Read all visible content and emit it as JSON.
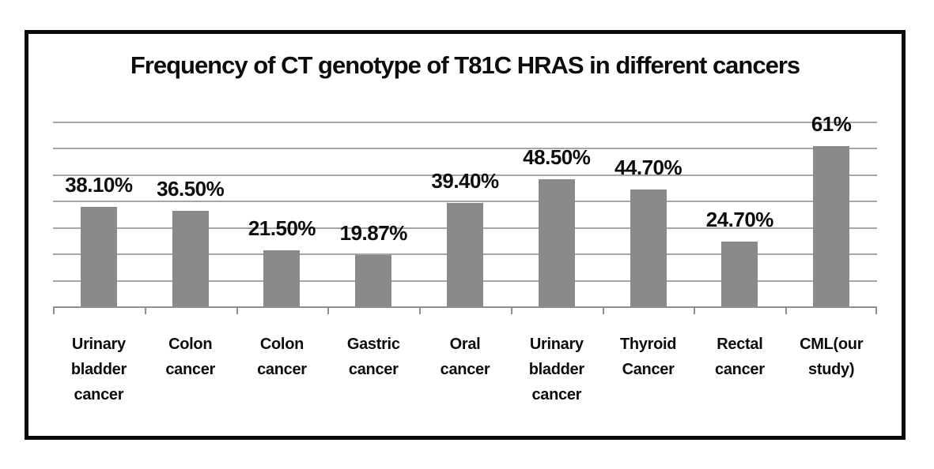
{
  "page": {
    "background": "#ffffff"
  },
  "chart": {
    "colors": {
      "background": "#ffffff",
      "frame_border": "#0a0a0a",
      "bar": "#8a8a8a",
      "gridline": "#a6a6a6",
      "axis": "#8f8f8f",
      "text": "#0d0d0d"
    }
  },
  "chart_data": {
    "type": "bar",
    "title": "Frequency of CT genotype of T81C HRAS in different cancers",
    "categories": [
      "Urinary bladder cancer",
      "Colon cancer",
      "Colon cancer",
      "Gastric cancer",
      "Oral cancer",
      "Urinary bladder cancer",
      "Thyroid Cancer",
      "Rectal cancer",
      "CML(our study)"
    ],
    "values": [
      38.1,
      36.5,
      21.5,
      19.87,
      39.4,
      48.5,
      44.7,
      24.7,
      61
    ],
    "value_labels": [
      "38.10%",
      "36.50%",
      "21.50%",
      "19.87%",
      "39.40%",
      "48.50%",
      "44.70%",
      "24.70%",
      "61%"
    ],
    "xlabel": "",
    "ylabel": "",
    "ylim": [
      0,
      70
    ],
    "gridline_step": 10,
    "grid": true,
    "legend": "none"
  }
}
